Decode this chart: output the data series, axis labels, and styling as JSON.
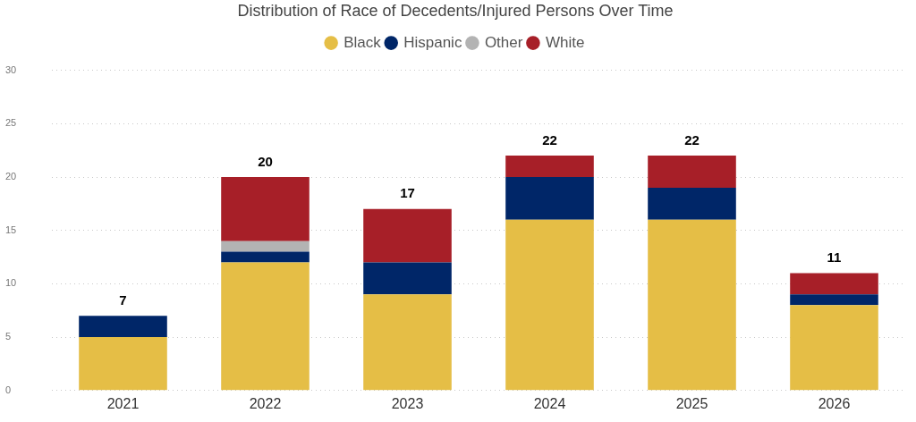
{
  "chart_data": {
    "type": "bar",
    "title": "Distribution of Race of Decedents/Injured Persons Over Time",
    "categories": [
      "2021",
      "2022",
      "2023",
      "2024",
      "2025",
      "2026"
    ],
    "series": [
      {
        "name": "Black",
        "color": "#e5be46",
        "values": [
          5,
          12,
          9,
          16,
          16,
          8
        ]
      },
      {
        "name": "Hispanic",
        "color": "#002668",
        "values": [
          2,
          1,
          3,
          4,
          3,
          1
        ]
      },
      {
        "name": "Other",
        "color": "#b3b3b3",
        "values": [
          null,
          1,
          null,
          null,
          null,
          null
        ]
      },
      {
        "name": "White",
        "color": "#a71f28",
        "values": [
          null,
          6,
          5,
          2,
          3,
          2
        ]
      }
    ],
    "stacked": true,
    "ylim": [
      0,
      30
    ],
    "yticks": [
      0,
      5,
      10,
      15,
      20,
      25,
      30
    ],
    "grid": "y",
    "legend": "top",
    "totals": [
      "7",
      "20",
      "17",
      "22",
      "22",
      "11"
    ]
  }
}
